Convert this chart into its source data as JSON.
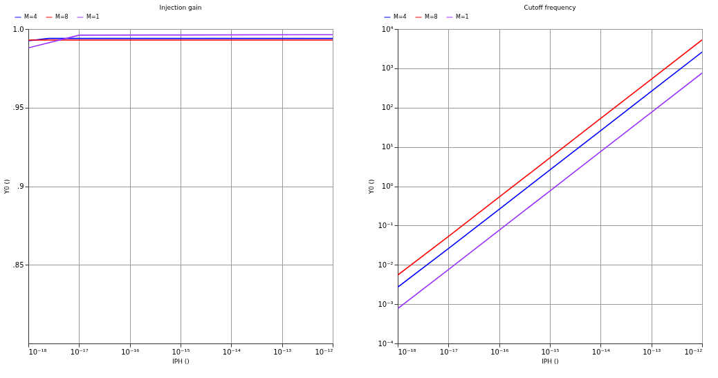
{
  "chart_data": [
    {
      "type": "line",
      "title": "Injection gain",
      "xlabel": "IPH ()",
      "ylabel": "Y0 ()",
      "log": "x",
      "grid": true,
      "legend": "top left",
      "line_style": "solid",
      "marker": "none",
      "xlim": [
        1e-18,
        1e-12
      ],
      "xticks": [
        {
          "value": 1e-18,
          "label": "10⁻¹⁸"
        },
        {
          "value": 1e-17,
          "label": "10⁻¹⁷"
        },
        {
          "value": 1e-16,
          "label": "10⁻¹⁶"
        },
        {
          "value": 1e-15,
          "label": "10⁻¹⁵"
        },
        {
          "value": 1e-14,
          "label": "10⁻¹⁴"
        },
        {
          "value": 1e-13,
          "label": "10⁻¹³"
        },
        {
          "value": 1e-12,
          "label": "10⁻¹²"
        }
      ],
      "ylim": [
        0.8,
        1.0
      ],
      "yticks": [
        {
          "value": 0.85,
          "label": ".85"
        },
        {
          "value": 0.9,
          "label": ".9"
        },
        {
          "value": 0.95,
          "label": ".95"
        },
        {
          "value": 1.0,
          "label": "1.0"
        }
      ],
      "series": [
        {
          "name": "M=4",
          "color": "#0000ff",
          "x": [
            1e-18,
            2.5e-18,
            1e-17,
            1e-15,
            1e-12
          ],
          "values": [
            0.9925,
            0.994,
            0.994,
            0.994,
            0.994
          ]
        },
        {
          "name": "M=8",
          "color": "#ff0000",
          "x": [
            1e-18,
            1e-17,
            1e-15,
            1e-12
          ],
          "values": [
            0.993,
            0.993,
            0.993,
            0.993
          ]
        },
        {
          "name": "M=1",
          "color": "#9933ff",
          "x": [
            1e-18,
            1e-17,
            3e-16,
            1e-15,
            3e-13,
            1e-12
          ],
          "values": [
            0.988,
            0.9961,
            0.9962,
            0.9962,
            0.9964,
            0.9964
          ]
        }
      ]
    },
    {
      "type": "line",
      "title": "Cutoff frequency",
      "xlabel": "IPH ()",
      "ylabel": "Y0 ()",
      "log": "xy",
      "grid": true,
      "legend": "top left",
      "line_style": "solid",
      "marker": "none",
      "xlim": [
        1e-18,
        1e-12
      ],
      "xticks": [
        {
          "value": 1e-18,
          "label": "10⁻¹⁸"
        },
        {
          "value": 1e-17,
          "label": "10⁻¹⁷"
        },
        {
          "value": 1e-16,
          "label": "10⁻¹⁶"
        },
        {
          "value": 1e-15,
          "label": "10⁻¹⁵"
        },
        {
          "value": 1e-14,
          "label": "10⁻¹⁴"
        },
        {
          "value": 1e-13,
          "label": "10⁻¹³"
        },
        {
          "value": 1e-12,
          "label": "10⁻¹²"
        }
      ],
      "ylim": [
        0.0001,
        10000
      ],
      "yticks": [
        {
          "value": 0.0001,
          "label": "10⁻⁴"
        },
        {
          "value": 0.001,
          "label": "10⁻³"
        },
        {
          "value": 0.01,
          "label": "10⁻²"
        },
        {
          "value": 0.1,
          "label": "10⁻¹"
        },
        {
          "value": 1,
          "label": "10⁰"
        },
        {
          "value": 10,
          "label": "10¹"
        },
        {
          "value": 100,
          "label": "10²"
        },
        {
          "value": 1000,
          "label": "10³"
        },
        {
          "value": 10000,
          "label": "10⁴"
        }
      ],
      "series": [
        {
          "name": "M=4",
          "color": "#0000ff",
          "x": [
            1e-18,
            1e-17,
            1e-16,
            1e-15,
            1e-14,
            1e-13,
            1e-12
          ],
          "values": [
            0.0027,
            0.026,
            0.26,
            2.6,
            26,
            260,
            2600
          ]
        },
        {
          "name": "M=8",
          "color": "#ff0000",
          "x": [
            1e-18,
            1e-17,
            1e-16,
            1e-15,
            1e-14,
            1e-13,
            1e-12
          ],
          "values": [
            0.0055,
            0.053,
            0.53,
            5.3,
            53,
            530,
            5300
          ]
        },
        {
          "name": "M=1",
          "color": "#9933ff",
          "x": [
            1e-18,
            1e-17,
            1e-16,
            1e-15,
            1e-14,
            1e-13,
            1e-12
          ],
          "values": [
            0.00077,
            0.0076,
            0.076,
            0.76,
            7.6,
            76,
            760
          ]
        }
      ]
    }
  ]
}
